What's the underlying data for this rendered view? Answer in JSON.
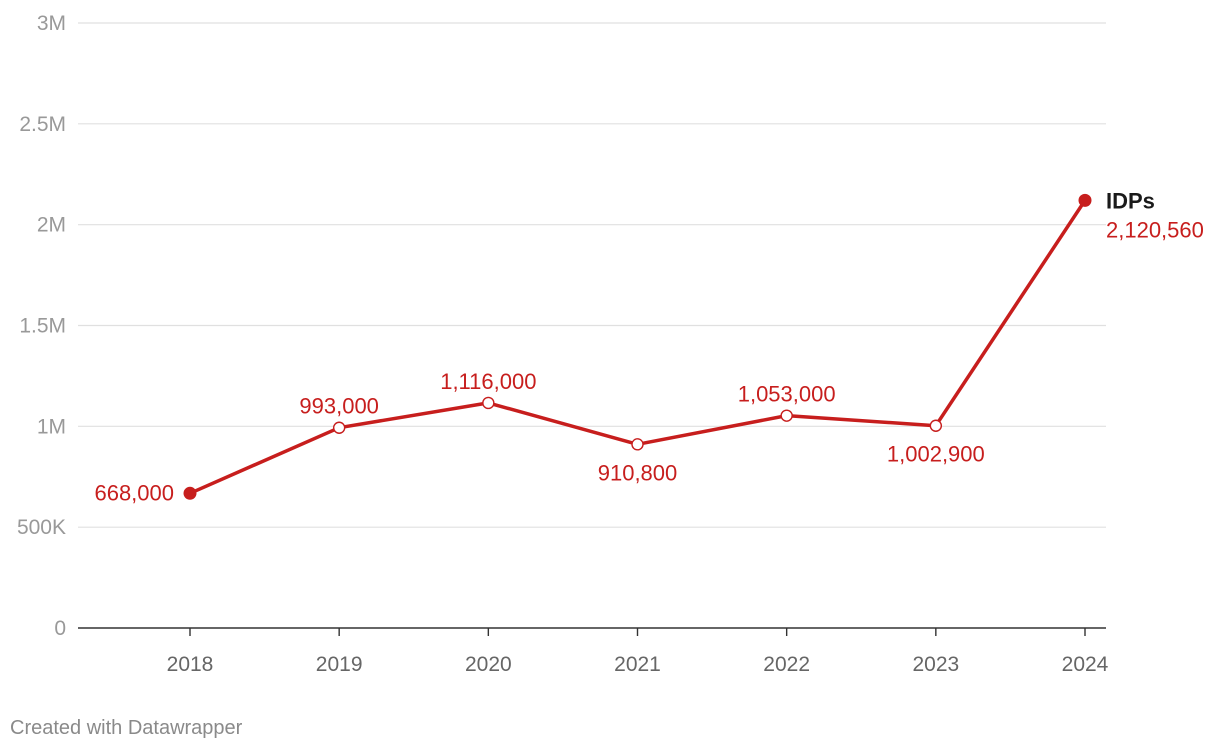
{
  "chart_data": {
    "type": "line",
    "x": [
      "2018",
      "2019",
      "2020",
      "2021",
      "2022",
      "2023",
      "2024"
    ],
    "series": [
      {
        "name": "IDPs",
        "values": [
          668000,
          993000,
          1116000,
          910800,
          1053000,
          1002900,
          2120560
        ],
        "data_labels": [
          "668,000",
          "993,000",
          "1,116,000",
          "910,800",
          "1,053,000",
          "1,002,900",
          "2,120,560"
        ],
        "color": "#c71e1d"
      }
    ],
    "ylim": [
      0,
      3000000
    ],
    "yticks": [
      0,
      500000,
      1000000,
      1500000,
      2000000,
      2500000,
      3000000
    ],
    "ytick_labels": [
      "0",
      "500K",
      "1M",
      "1.5M",
      "2M",
      "2.5M",
      "3M"
    ],
    "grid": true,
    "xlabel": "",
    "ylabel": ""
  },
  "footer": {
    "credit": "Created with Datawrapper"
  },
  "colors": {
    "line": "#c71e1d",
    "grid": "#e0e0e0",
    "axis": "#333333",
    "tick_text": "#999999",
    "xtick_text": "#666666"
  }
}
